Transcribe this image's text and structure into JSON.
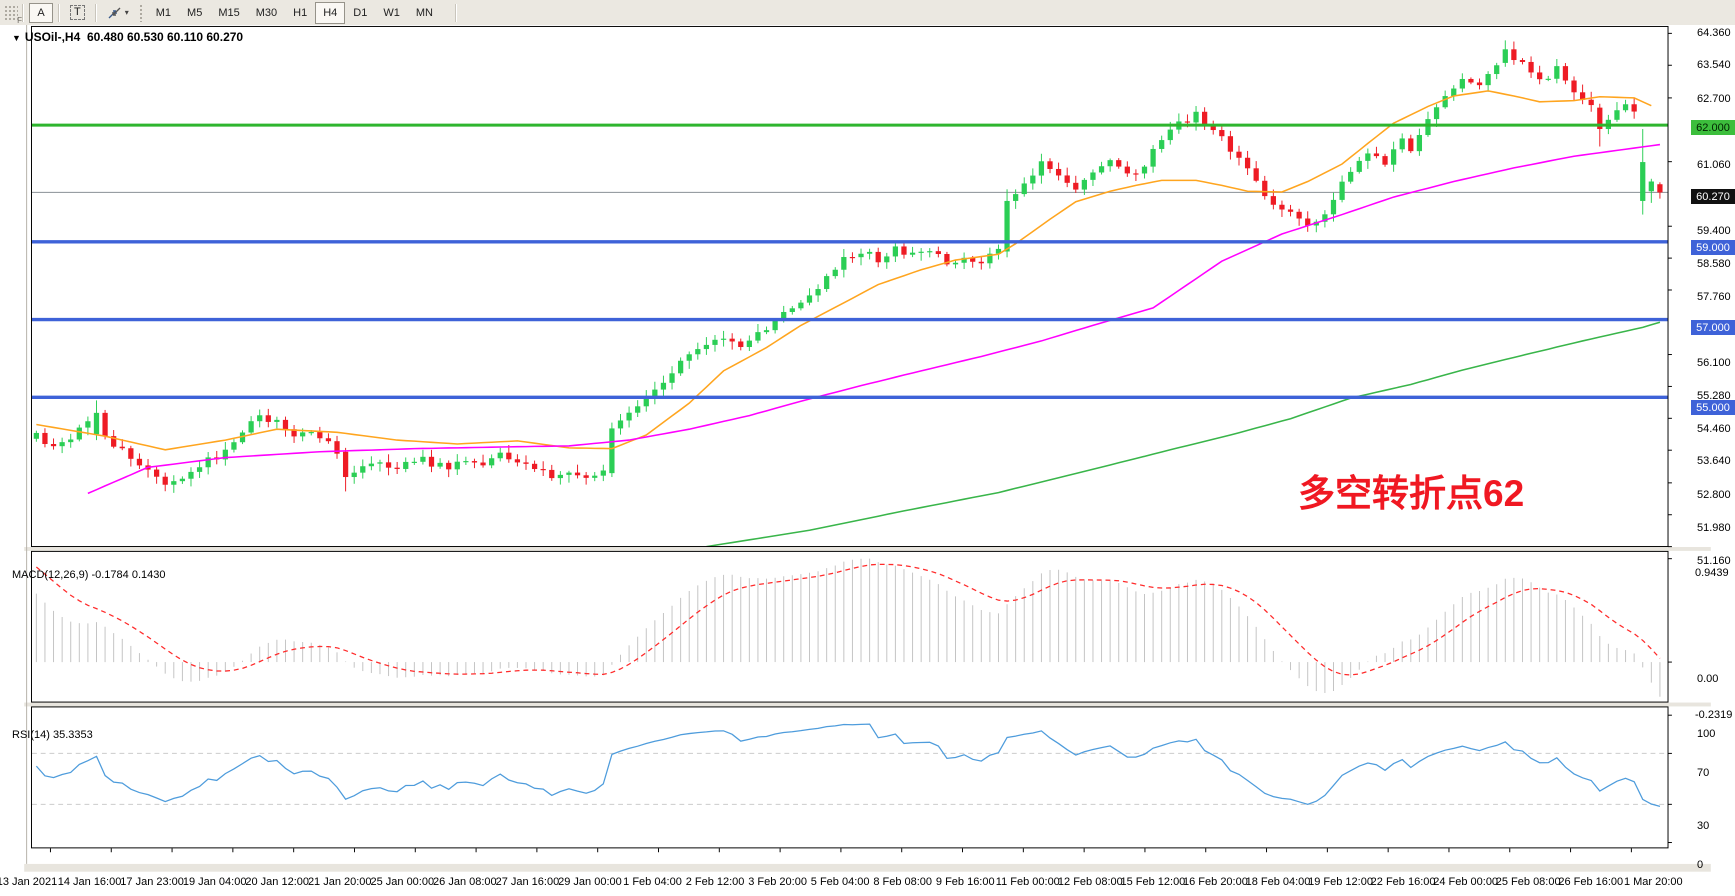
{
  "toolbar": {
    "grip_label": "F",
    "buttons": [
      {
        "id": "cursor-a-button",
        "label": "A",
        "pressed": true
      },
      {
        "id": "text-tool-button",
        "label": "T",
        "pressed": false
      },
      {
        "id": "arrows-tool-button",
        "label": "",
        "pressed": false
      }
    ],
    "dropdown_caret": "▾",
    "timeframes": [
      "M1",
      "M5",
      "M15",
      "M30",
      "H1",
      "H4",
      "D1",
      "W1",
      "MN"
    ],
    "active_timeframe": "H4"
  },
  "chart": {
    "symbol_dropdown_icon": "▼",
    "symbol_title": "USOil-,H4",
    "ohlc_text": "60.480 60.530 60.110 60.270",
    "annotation": {
      "text": "多空转折点62",
      "color": "#F01822"
    }
  },
  "price_axis": {
    "ticks": [
      {
        "label": "64.360",
        "price": 64.36
      },
      {
        "label": "63.540",
        "price": 63.54
      },
      {
        "label": "62.700",
        "price": 62.7
      },
      {
        "label": "61.060",
        "price": 61.06
      },
      {
        "label": "59.400",
        "price": 59.4
      },
      {
        "label": "58.580",
        "price": 58.58
      },
      {
        "label": "57.760",
        "price": 57.76
      },
      {
        "label": "56.100",
        "price": 56.1
      },
      {
        "label": "55.280",
        "price": 55.28
      },
      {
        "label": "54.460",
        "price": 54.46
      },
      {
        "label": "53.640",
        "price": 53.64
      },
      {
        "label": "52.800",
        "price": 52.8
      },
      {
        "label": "51.980",
        "price": 51.98
      },
      {
        "label": "51.160",
        "price": 51.16
      }
    ],
    "badges": [
      {
        "label": "62.000",
        "price": 62.0,
        "bg": "#3CBE3C",
        "fg": "#002200"
      },
      {
        "label": "60.270",
        "price": 60.27,
        "bg": "#111111",
        "fg": "#ffffff"
      },
      {
        "label": "59.000",
        "price": 59.0,
        "bg": "#3E62D8",
        "fg": "#ffffff"
      },
      {
        "label": "57.000",
        "price": 57.0,
        "bg": "#3E62D8",
        "fg": "#ffffff"
      },
      {
        "label": "55.000",
        "price": 55.0,
        "bg": "#3E62D8",
        "fg": "#ffffff"
      }
    ]
  },
  "indicators": {
    "macd": {
      "label": "MACD(12,26,9) -0.1784 0.1430",
      "axis_top": "0.9439",
      "axis_zero": "0.00",
      "axis_bottom": "-0.2319",
      "histogram_color": "#C3C3C3",
      "signal_color": "#FF2B2B"
    },
    "rsi": {
      "label": "RSI(14) 35.3353",
      "axis": [
        {
          "label": "100",
          "value": 100
        },
        {
          "label": "70",
          "value": 70
        },
        {
          "label": "30",
          "value": 30
        },
        {
          "label": "0",
          "value": 0
        }
      ],
      "levels": [
        70,
        30
      ],
      "line_color": "#4E9CDC",
      "level_color": "#CCCCCC"
    }
  },
  "time_axis": {
    "labels": [
      "13 Jan 2021",
      "14 Jan 16:00",
      "17 Jan 23:00",
      "19 Jan 04:00",
      "20 Jan 12:00",
      "21 Jan 20:00",
      "25 Jan 00:00",
      "26 Jan 08:00",
      "27 Jan 16:00",
      "29 Jan 00:00",
      "1 Feb 04:00",
      "2 Feb 12:00",
      "3 Feb 20:00",
      "5 Feb 04:00",
      "8 Feb 08:00",
      "9 Feb 16:00",
      "11 Feb 00:00",
      "12 Feb 08:00",
      "15 Feb 12:00",
      "16 Feb 20:00",
      "18 Feb 04:00",
      "19 Feb 12:00",
      "22 Feb 16:00",
      "24 Feb 00:00",
      "25 Feb 08:00",
      "26 Feb 16:00",
      "1 Mar 20:00"
    ]
  },
  "chart_data": {
    "type": "candlestick",
    "symbol": "USOil",
    "timeframe": "H4",
    "bars": 190,
    "price_range": [
      51.14,
      64.54
    ],
    "last_ohlc": {
      "open": 60.48,
      "high": 60.53,
      "low": 60.11,
      "close": 60.27
    },
    "close_anchors": [
      [
        0,
        54.1
      ],
      [
        2,
        53.7
      ],
      [
        4,
        54.0
      ],
      [
        6,
        54.3
      ],
      [
        7,
        54.6
      ],
      [
        8,
        54.1
      ],
      [
        9,
        53.8
      ],
      [
        11,
        53.4
      ],
      [
        13,
        53.1
      ],
      [
        15,
        52.85
      ],
      [
        17,
        53.0
      ],
      [
        19,
        53.2
      ],
      [
        21,
        53.5
      ],
      [
        23,
        53.9
      ],
      [
        25,
        54.45
      ],
      [
        26,
        54.6
      ],
      [
        28,
        54.35
      ],
      [
        30,
        54.0
      ],
      [
        32,
        54.15
      ],
      [
        34,
        53.85
      ],
      [
        35,
        53.6
      ],
      [
        36,
        52.95
      ],
      [
        38,
        53.2
      ],
      [
        40,
        53.35
      ],
      [
        42,
        53.2
      ],
      [
        44,
        53.45
      ],
      [
        46,
        53.3
      ],
      [
        48,
        53.15
      ],
      [
        50,
        53.4
      ],
      [
        52,
        53.3
      ],
      [
        54,
        53.5
      ],
      [
        56,
        53.35
      ],
      [
        58,
        53.2
      ],
      [
        60,
        52.95
      ],
      [
        62,
        53.1
      ],
      [
        64,
        52.9
      ],
      [
        66,
        53.05
      ],
      [
        67,
        54.2
      ],
      [
        69,
        54.6
      ],
      [
        71,
        55.0
      ],
      [
        73,
        55.35
      ],
      [
        75,
        55.95
      ],
      [
        76,
        56.2
      ],
      [
        78,
        56.45
      ],
      [
        80,
        56.55
      ],
      [
        82,
        56.35
      ],
      [
        84,
        56.65
      ],
      [
        86,
        57.0
      ],
      [
        88,
        57.25
      ],
      [
        90,
        57.6
      ],
      [
        92,
        58.05
      ],
      [
        94,
        58.5
      ],
      [
        96,
        58.8
      ],
      [
        98,
        58.55
      ],
      [
        100,
        58.9
      ],
      [
        102,
        58.65
      ],
      [
        104,
        58.85
      ],
      [
        106,
        58.45
      ],
      [
        108,
        58.65
      ],
      [
        110,
        58.5
      ],
      [
        112,
        58.75
      ],
      [
        113,
        60.05
      ],
      [
        115,
        60.4
      ],
      [
        117,
        61.0
      ],
      [
        119,
        60.7
      ],
      [
        121,
        60.45
      ],
      [
        123,
        60.85
      ],
      [
        125,
        61.05
      ],
      [
        127,
        60.7
      ],
      [
        129,
        61.0
      ],
      [
        131,
        61.65
      ],
      [
        133,
        62.1
      ],
      [
        135,
        62.25
      ],
      [
        137,
        61.9
      ],
      [
        139,
        61.4
      ],
      [
        141,
        60.8
      ],
      [
        143,
        60.2
      ],
      [
        145,
        59.8
      ],
      [
        147,
        59.55
      ],
      [
        149,
        59.5
      ],
      [
        151,
        60.1
      ],
      [
        153,
        60.8
      ],
      [
        155,
        61.3
      ],
      [
        157,
        61.0
      ],
      [
        159,
        61.55
      ],
      [
        160,
        61.25
      ],
      [
        162,
        62.2
      ],
      [
        164,
        62.75
      ],
      [
        166,
        63.1
      ],
      [
        168,
        63.0
      ],
      [
        170,
        63.6
      ],
      [
        171,
        63.9
      ],
      [
        172,
        63.75
      ],
      [
        174,
        63.4
      ],
      [
        176,
        63.15
      ],
      [
        177,
        63.45
      ],
      [
        179,
        62.85
      ],
      [
        181,
        62.45
      ],
      [
        182,
        61.9
      ],
      [
        183,
        62.15
      ],
      [
        184,
        62.35
      ],
      [
        185,
        62.6
      ],
      [
        186,
        62.25
      ],
      [
        187,
        61.05
      ],
      [
        188,
        60.55
      ],
      [
        189,
        60.27
      ]
    ],
    "ohlc_overrides": {
      "7": [
        54.05,
        54.92,
        53.9,
        54.6
      ],
      "36": [
        53.6,
        53.7,
        52.58,
        52.95
      ],
      "67": [
        53.05,
        54.35,
        52.95,
        54.2
      ],
      "113": [
        58.75,
        60.35,
        58.6,
        60.05
      ],
      "171": [
        63.6,
        64.18,
        63.5,
        63.95
      ],
      "182": [
        62.45,
        62.55,
        61.45,
        61.9
      ],
      "187": [
        60.05,
        61.9,
        59.7,
        61.05
      ],
      "188": [
        60.3,
        60.62,
        60.0,
        60.55
      ],
      "189": [
        60.48,
        60.53,
        60.11,
        60.27
      ]
    },
    "up_color": "#2BCE55",
    "down_color": "#EE1B24",
    "hlines": [
      {
        "price": 62.0,
        "color": "#2EB52E",
        "width": 3
      },
      {
        "price": 59.0,
        "color": "#3E62D8",
        "width": 3.5
      },
      {
        "price": 57.0,
        "color": "#3E62D8",
        "width": 3.5
      },
      {
        "price": 55.0,
        "color": "#3E62D8",
        "width": 3.5
      }
    ],
    "current_price_line": {
      "price": 60.27,
      "color": "#8a9096"
    },
    "moving_averages": [
      {
        "name": "ma-fast",
        "color": "#FFA51F",
        "anchors": [
          [
            0,
            54.3
          ],
          [
            8,
            54.0
          ],
          [
            15,
            53.65
          ],
          [
            22,
            53.9
          ],
          [
            28,
            54.18
          ],
          [
            35,
            54.1
          ],
          [
            42,
            53.9
          ],
          [
            49,
            53.8
          ],
          [
            56,
            53.88
          ],
          [
            62,
            53.7
          ],
          [
            67,
            53.68
          ],
          [
            71,
            54.03
          ],
          [
            76,
            54.85
          ],
          [
            80,
            55.68
          ],
          [
            85,
            56.28
          ],
          [
            89,
            56.85
          ],
          [
            94,
            57.43
          ],
          [
            98,
            57.9
          ],
          [
            103,
            58.28
          ],
          [
            107,
            58.53
          ],
          [
            112,
            58.68
          ],
          [
            114,
            58.95
          ],
          [
            118,
            59.58
          ],
          [
            121,
            60.03
          ],
          [
            125,
            60.3
          ],
          [
            128,
            60.45
          ],
          [
            131,
            60.58
          ],
          [
            135,
            60.58
          ],
          [
            138,
            60.45
          ],
          [
            141,
            60.3
          ],
          [
            145,
            60.28
          ],
          [
            148,
            60.55
          ],
          [
            152,
            61.0
          ],
          [
            155,
            61.53
          ],
          [
            158,
            62.05
          ],
          [
            162,
            62.48
          ],
          [
            165,
            62.75
          ],
          [
            169,
            62.88
          ],
          [
            172,
            62.75
          ],
          [
            175,
            62.6
          ],
          [
            179,
            62.63
          ],
          [
            182,
            62.73
          ],
          [
            186,
            62.7
          ],
          [
            188,
            62.5
          ]
        ]
      },
      {
        "name": "ma-mid",
        "color": "#FF00FF",
        "anchors": [
          [
            6,
            52.53
          ],
          [
            13,
            53.2
          ],
          [
            22,
            53.45
          ],
          [
            33,
            53.6
          ],
          [
            44,
            53.68
          ],
          [
            56,
            53.73
          ],
          [
            62,
            53.75
          ],
          [
            69,
            53.9
          ],
          [
            76,
            54.18
          ],
          [
            83,
            54.53
          ],
          [
            89,
            54.9
          ],
          [
            96,
            55.3
          ],
          [
            103,
            55.68
          ],
          [
            110,
            56.05
          ],
          [
            117,
            56.45
          ],
          [
            123,
            56.85
          ],
          [
            130,
            57.3
          ],
          [
            138,
            58.5
          ],
          [
            145,
            59.2
          ],
          [
            152,
            59.7
          ],
          [
            158,
            60.15
          ],
          [
            165,
            60.55
          ],
          [
            172,
            60.9
          ],
          [
            179,
            61.2
          ],
          [
            189,
            61.5
          ]
        ]
      },
      {
        "name": "ma-slow",
        "color": "#39B54A",
        "anchors": [
          [
            78,
            51.16
          ],
          [
            90,
            51.58
          ],
          [
            101,
            52.08
          ],
          [
            112,
            52.55
          ],
          [
            123,
            53.15
          ],
          [
            132,
            53.65
          ],
          [
            139,
            54.03
          ],
          [
            146,
            54.45
          ],
          [
            153,
            54.98
          ],
          [
            160,
            55.33
          ],
          [
            166,
            55.7
          ],
          [
            173,
            56.08
          ],
          [
            180,
            56.45
          ],
          [
            187,
            56.8
          ],
          [
            189,
            56.93
          ]
        ]
      }
    ]
  }
}
